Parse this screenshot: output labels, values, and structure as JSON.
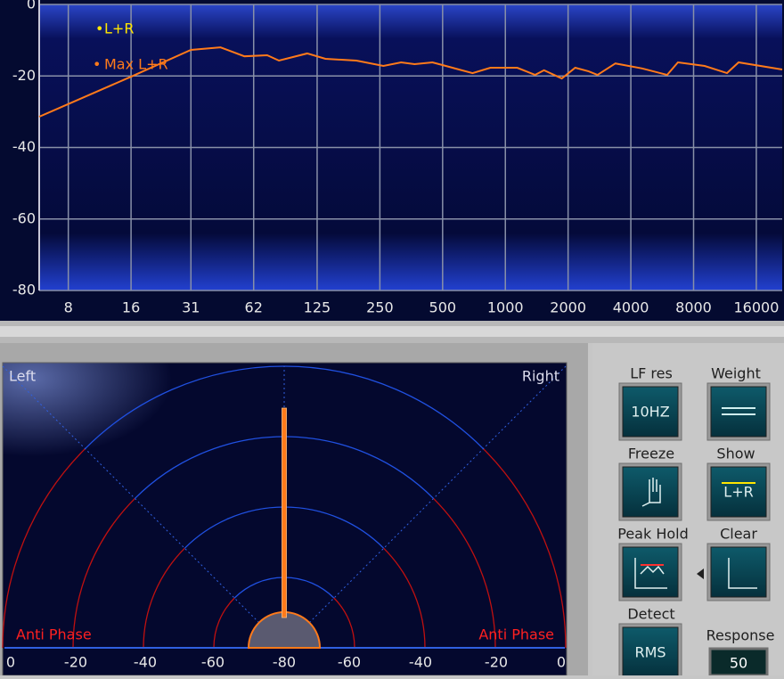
{
  "chart_data": {
    "type": "line",
    "log_x": true,
    "grid": true,
    "xlim": [
      5.8,
      21300
    ],
    "xticks": [
      8,
      16,
      31,
      62,
      125,
      250,
      500,
      1000,
      2000,
      4000,
      8000,
      16000
    ],
    "ylim": [
      -80,
      0
    ],
    "yticks": [
      -80,
      -60,
      -40,
      -20,
      0
    ],
    "x": [
      5.8,
      16,
      31,
      43,
      56,
      72,
      82,
      112,
      137,
      193,
      260,
      316,
      367,
      447,
      518,
      696,
      848,
      1140,
      1389,
      1533,
      1866,
      2164,
      2510,
      2768,
      3373,
      4533,
      5976,
      6728,
      9040,
      11576,
      13152,
      21300
    ],
    "series": [
      {
        "name": "L+R",
        "color": "#ffe600",
        "values": [
          null,
          null,
          null,
          null,
          null,
          null,
          null,
          null,
          null,
          null,
          null,
          null,
          null,
          null,
          null,
          null,
          null,
          null,
          null,
          null,
          null,
          null,
          null,
          null,
          null,
          null,
          null,
          null,
          null,
          null,
          null,
          null
        ]
      },
      {
        "name": "Max L+R",
        "color": "#ff7a1a",
        "values": [
          -31.4,
          -20.2,
          -12.7,
          -12,
          -14.5,
          -14.2,
          -15.7,
          -13.7,
          -15.2,
          -15.7,
          -17.2,
          -16.2,
          -16.7,
          -16.2,
          -17.2,
          -19.2,
          -17.7,
          -17.7,
          -19.7,
          -18.4,
          -20.7,
          -17.7,
          -18.7,
          -19.7,
          -16.5,
          -17.9,
          -19.7,
          -16.2,
          -17.2,
          -19.2,
          -16.2,
          -18.2
        ]
      }
    ]
  },
  "goniometer": {
    "left": "Left",
    "right": "Right",
    "anti_left": "Anti Phase",
    "anti_right": "Anti Phase",
    "scale": [
      "0",
      "-20",
      "-40",
      "-60",
      "-80",
      "-60",
      "-40",
      "-20",
      "0"
    ]
  },
  "controls": {
    "lf_res": {
      "label": "LF res",
      "value": "10HZ"
    },
    "weight": {
      "label": "Weight"
    },
    "freeze": {
      "label": "Freeze"
    },
    "show": {
      "label": "Show",
      "value": "L+R"
    },
    "peak_hold": {
      "label": "Peak Hold"
    },
    "clear": {
      "label": "Clear"
    },
    "detect": {
      "label": "Detect",
      "value": "RMS"
    },
    "response": {
      "label": "Response",
      "value": "50"
    }
  }
}
